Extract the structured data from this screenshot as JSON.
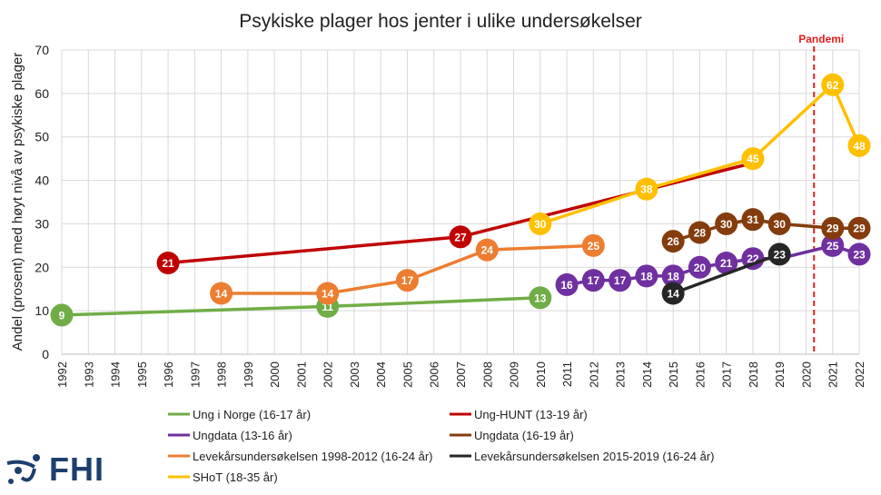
{
  "chart_data": {
    "type": "line",
    "title": "Psykiske plager hos jenter i ulike undersøkelser",
    "xlabel": "",
    "ylabel": "Andel (prosent) med høyt nivå av psykiske plager",
    "xlim": [
      1992,
      2022
    ],
    "ylim": [
      0,
      70
    ],
    "yticks": [
      0,
      10,
      20,
      30,
      40,
      50,
      60,
      70
    ],
    "categories": [
      "1992",
      "1993",
      "1994",
      "1995",
      "1996",
      "1997",
      "1998",
      "1999",
      "2000",
      "2001",
      "2002",
      "2003",
      "2004",
      "2005",
      "2006",
      "2007",
      "2008",
      "2009",
      "2010",
      "2011",
      "2012",
      "2013",
      "2014",
      "2015",
      "2016",
      "2017",
      "2018",
      "2019",
      "2020",
      "2021",
      "2022"
    ],
    "grid": true,
    "legend_position": "bottom",
    "annotation": {
      "label": "Pandemi",
      "x": 2020.3,
      "color": "#e3201b"
    },
    "series": [
      {
        "name": "Ung i Norge (16-17 år)",
        "color": "#70ad47",
        "x": [
          1992,
          2002,
          2010
        ],
        "values": [
          9,
          11,
          13
        ],
        "labels": [
          "9",
          "11",
          "13"
        ]
      },
      {
        "name": "Ung-HUNT (13-19 år)",
        "color": "#c00000",
        "x": [
          1996,
          2007,
          2018
        ],
        "values": [
          21,
          27,
          44
        ],
        "labels": [
          "21",
          "27",
          ""
        ]
      },
      {
        "name": "Ungdata (13-16 år)",
        "color": "#7030a0",
        "x": [
          2011,
          2012,
          2013,
          2014,
          2015,
          2016,
          2017,
          2018,
          2019,
          2021,
          2022
        ],
        "values": [
          16,
          17,
          17,
          18,
          18,
          20,
          21,
          22,
          22,
          25,
          23
        ],
        "labels": [
          "16",
          "17",
          "17",
          "18",
          "18",
          "20",
          "21",
          "22",
          "",
          "25",
          "23"
        ]
      },
      {
        "name": "Ungdata (16-19 år)",
        "color": "#843c0c",
        "x": [
          2015,
          2016,
          2017,
          2018,
          2019,
          2021,
          2022
        ],
        "values": [
          26,
          28,
          30,
          31,
          30,
          29,
          29
        ],
        "labels": [
          "26",
          "28",
          "30",
          "31",
          "30",
          "29",
          "29"
        ]
      },
      {
        "name": "Levekårsundersøkelsen 1998-2012 (16-24 år)",
        "color": "#ed7d31",
        "x": [
          1998,
          2002,
          2005,
          2008,
          2012
        ],
        "values": [
          14,
          14,
          17,
          24,
          25
        ],
        "labels": [
          "14",
          "14",
          "17",
          "24",
          "25"
        ]
      },
      {
        "name": "Levekårsundersøkelsen 2015-2019 (16-24 år)",
        "color": "#262626",
        "x": [
          2015,
          2019
        ],
        "values": [
          14,
          23
        ],
        "labels": [
          "14",
          "23"
        ]
      },
      {
        "name": "SHoT (18-35 år)",
        "color": "#ffc000",
        "x": [
          2010,
          2014,
          2018,
          2021,
          2022
        ],
        "values": [
          30,
          38,
          45,
          62,
          48
        ],
        "labels": [
          "30",
          "38",
          "45",
          "62",
          "48"
        ]
      }
    ]
  },
  "logo": {
    "text": "FHI"
  }
}
